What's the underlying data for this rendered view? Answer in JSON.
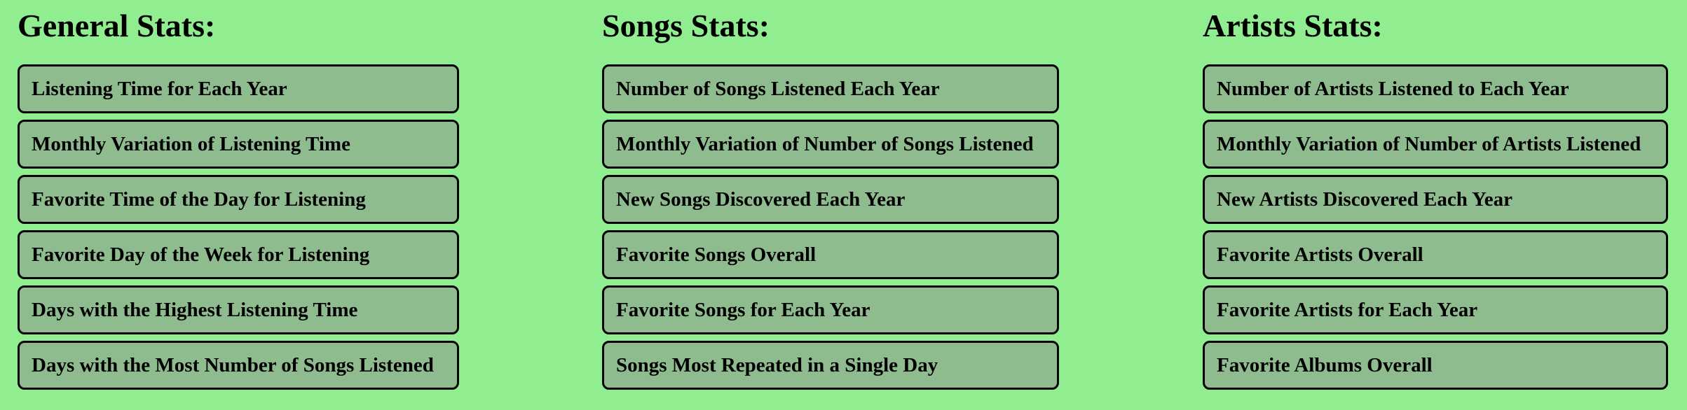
{
  "colors": {
    "background": "#90ee90",
    "button_background": "#8fbc8f",
    "button_border": "#000000",
    "text": "#000000"
  },
  "columns": [
    {
      "title": "General Stats:",
      "buttons": [
        "Listening Time for Each Year",
        "Monthly Variation of Listening Time",
        "Favorite Time of the Day for Listening",
        "Favorite Day of the Week for Listening",
        "Days with the Highest Listening Time",
        "Days with the Most Number of Songs Listened"
      ]
    },
    {
      "title": "Songs Stats:",
      "buttons": [
        "Number of Songs Listened Each Year",
        "Monthly Variation of Number of Songs Listened",
        "New Songs Discovered Each Year",
        "Favorite Songs Overall",
        "Favorite Songs for Each Year",
        "Songs Most Repeated in a Single Day"
      ]
    },
    {
      "title": "Artists Stats:",
      "buttons": [
        "Number of Artists Listened to Each Year",
        "Monthly Variation of Number of Artists Listened",
        "New Artists Discovered Each Year",
        "Favorite Artists Overall",
        "Favorite Artists for Each Year",
        "Favorite Albums Overall"
      ]
    }
  ]
}
